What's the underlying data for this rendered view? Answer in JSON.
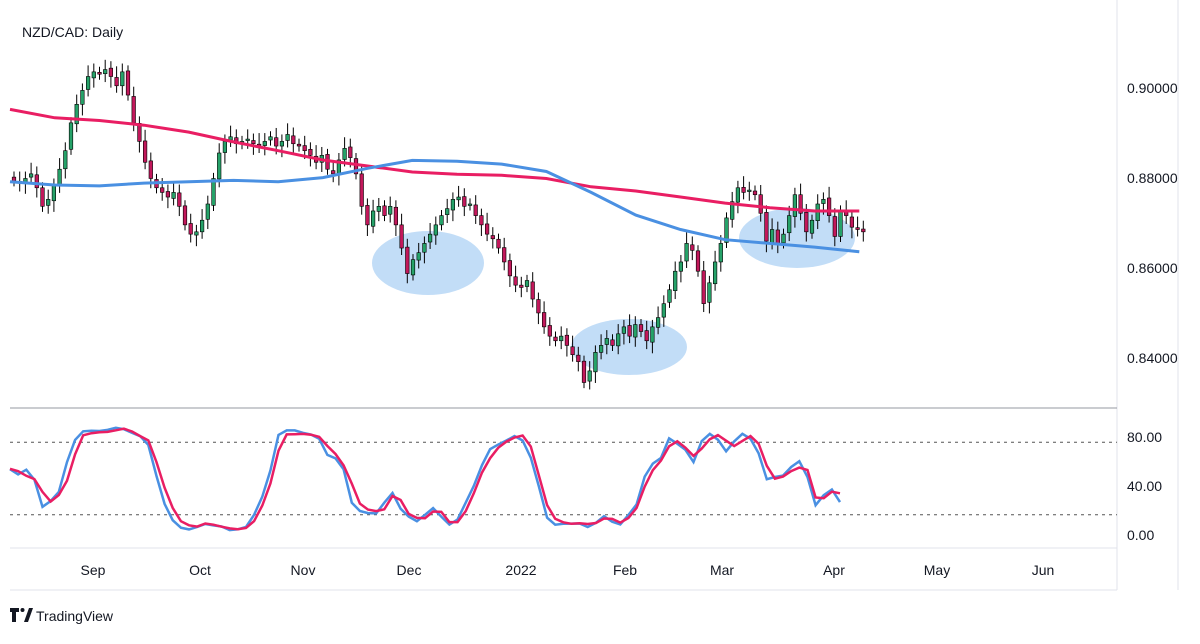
{
  "title": "NZD/CAD: Daily",
  "brand": "TradingView",
  "colors": {
    "up": "#26a269",
    "down": "#c2185b",
    "ma_slow": "#e91e63",
    "ma_fast": "#4a90e2",
    "highlight": "#b3d4f5",
    "grid": "#e0e3eb"
  },
  "chart_data": [
    {
      "type": "candlestick",
      "title": "NZD/CAD: Daily",
      "y_ticks": [
        "0.90000",
        "0.88000",
        "0.86000",
        "0.84000"
      ],
      "ylim": [
        0.8285,
        0.9165
      ],
      "x_ticks": [
        "Sep",
        "Oct",
        "Nov",
        "Dec",
        "2022",
        "Feb",
        "Mar",
        "Apr",
        "May",
        "Jun"
      ],
      "close": [
        0.8775,
        0.877,
        0.878,
        0.879,
        0.876,
        0.872,
        0.8735,
        0.8765,
        0.88,
        0.884,
        0.89,
        0.894,
        0.897,
        0.9,
        0.901,
        0.9005,
        0.9015,
        0.9,
        0.898,
        0.901,
        0.896,
        0.89,
        0.886,
        0.8815,
        0.878,
        0.876,
        0.875,
        0.874,
        0.875,
        0.872,
        0.868,
        0.866,
        0.8665,
        0.869,
        0.8725,
        0.878,
        0.8835,
        0.886,
        0.887,
        0.8855,
        0.886,
        0.8865,
        0.8855,
        0.885,
        0.886,
        0.887,
        0.885,
        0.886,
        0.8875,
        0.8855,
        0.885,
        0.884,
        0.883,
        0.8815,
        0.883,
        0.88,
        0.879,
        0.882,
        0.8845,
        0.8825,
        0.879,
        0.872,
        0.868,
        0.871,
        0.872,
        0.87,
        0.872,
        0.868,
        0.863,
        0.8575,
        0.8605,
        0.862,
        0.864,
        0.866,
        0.868,
        0.87,
        0.8715,
        0.8735,
        0.874,
        0.872,
        0.8725,
        0.87,
        0.868,
        0.866,
        0.865,
        0.863,
        0.86,
        0.857,
        0.855,
        0.8545,
        0.856,
        0.852,
        0.849,
        0.846,
        0.844,
        0.843,
        0.844,
        0.842,
        0.84,
        0.8385,
        0.834,
        0.8365,
        0.8405,
        0.842,
        0.8435,
        0.842,
        0.8445,
        0.846,
        0.844,
        0.8465,
        0.845,
        0.843,
        0.846,
        0.848,
        0.851,
        0.854,
        0.858,
        0.86,
        0.864,
        0.8625,
        0.858,
        0.851,
        0.8555,
        0.86,
        0.864,
        0.8695,
        0.873,
        0.876,
        0.875,
        0.8755,
        0.8745,
        0.8705,
        0.8645,
        0.867,
        0.864,
        0.866,
        0.87,
        0.8745,
        0.8705,
        0.8665,
        0.869,
        0.8725,
        0.8735,
        0.87,
        0.8655,
        0.871,
        0.87,
        0.8675,
        0.867,
        0.8665
      ]
    },
    {
      "type": "line",
      "series": [
        {
          "values": [
            0.8929,
            0.8911,
            0.8905,
            0.8895,
            0.888,
            0.8859,
            0.884,
            0.882,
            0.8807,
            0.8794,
            0.8789,
            0.8787,
            0.878,
            0.8762,
            0.8753,
            0.874,
            0.8727,
            0.8717,
            0.871,
            0.871
          ]
        }
      ]
    },
    {
      "type": "line",
      "series": [
        {
          "values": [
            0.8773,
            0.8766,
            0.8764,
            0.877,
            0.8773,
            0.8776,
            0.8773,
            0.8782,
            0.8802,
            0.8819,
            0.8817,
            0.8811,
            0.8795,
            0.875,
            0.8701,
            0.867,
            0.8648,
            0.864,
            0.8632,
            0.8622
          ]
        }
      ]
    },
    {
      "type": "line",
      "series": [
        {
          "values": [
            57.7,
            53.4,
            57.3,
            49.0,
            26.6,
            31.4,
            38.9,
            63.6,
            81.9,
            89.0,
            89.5,
            89.3,
            90.3,
            91.9,
            90.8,
            87.7,
            85.0,
            77.8,
            52.1,
            29.0,
            15.5,
            9.3,
            7.9,
            9.9,
            12.4,
            11.2,
            10.3,
            7.3,
            8.0,
            9.9,
            20.0,
            35.0,
            56.6,
            86.1,
            89.8,
            89.8,
            87.8,
            86.3,
            82.8,
            69.5,
            66.6,
            57.6,
            30.0,
            23.1,
            21.4,
            21.1,
            30.0,
            38.0,
            25.0,
            18.5,
            14.7,
            20.0,
            25.5,
            18.5,
            11.9,
            16.0,
            30.0,
            43.9,
            61.0,
            74.2,
            78.0,
            81.4,
            85.1,
            81.4,
            67.2,
            43.4,
            17.6,
            11.8,
            12.6,
            12.7,
            12.8,
            9.9,
            13.4,
            18.8,
            14.2,
            12.0,
            19.8,
            28.6,
            51.6,
            62.3,
            67.0,
            83.2,
            78.8,
            73.7,
            63.6,
            80.9,
            86.9,
            82.1,
            72.5,
            80.7,
            87.0,
            82.8,
            70.9,
            49.4,
            51.2,
            52.4,
            59.5,
            64.3,
            51.2,
            27.9,
            36.2,
            40.9,
            30.5
          ]
        },
        {
          "values": [
            58.0,
            56.0,
            52.2,
            49.5,
            38.9,
            31.0,
            36.3,
            48.1,
            70.0,
            85.7,
            87.5,
            88.2,
            88.5,
            89.9,
            91.2,
            88.9,
            85.1,
            81.5,
            63.6,
            42.4,
            25.7,
            14.7,
            11.3,
            10.2,
            12.8,
            11.8,
            10.1,
            8.7,
            8.1,
            9.1,
            14.8,
            27.7,
            45.9,
            73.0,
            86.5,
            86.6,
            86.9,
            86.2,
            84.4,
            76.9,
            70.3,
            60.8,
            45.8,
            29.2,
            24.3,
            23.0,
            24.5,
            35.5,
            32.2,
            20.7,
            17.4,
            17.2,
            22.7,
            22.4,
            13.9,
            13.9,
            23.0,
            37.8,
            54.9,
            66.8,
            75.4,
            80.5,
            83.9,
            85.6,
            76.5,
            52.4,
            28.0,
            16.7,
            13.8,
            12.5,
            13.0,
            12.4,
            13.2,
            16.9,
            16.6,
            13.5,
            17.3,
            25.7,
            43.3,
            56.9,
            64.9,
            76.6,
            80.8,
            75.5,
            68.7,
            74.7,
            82.5,
            85.9,
            81.3,
            76.9,
            81.1,
            85.1,
            78.8,
            60.5,
            49.8,
            51.6,
            56.1,
            59.0,
            57.0,
            34.3,
            33.7,
            39.1,
            37.8
          ]
        }
      ],
      "ylim": [
        -5,
        105
      ],
      "y_ticks": [
        "80.00",
        "40.00",
        "0.00"
      ],
      "levels": [
        80,
        20
      ]
    }
  ]
}
